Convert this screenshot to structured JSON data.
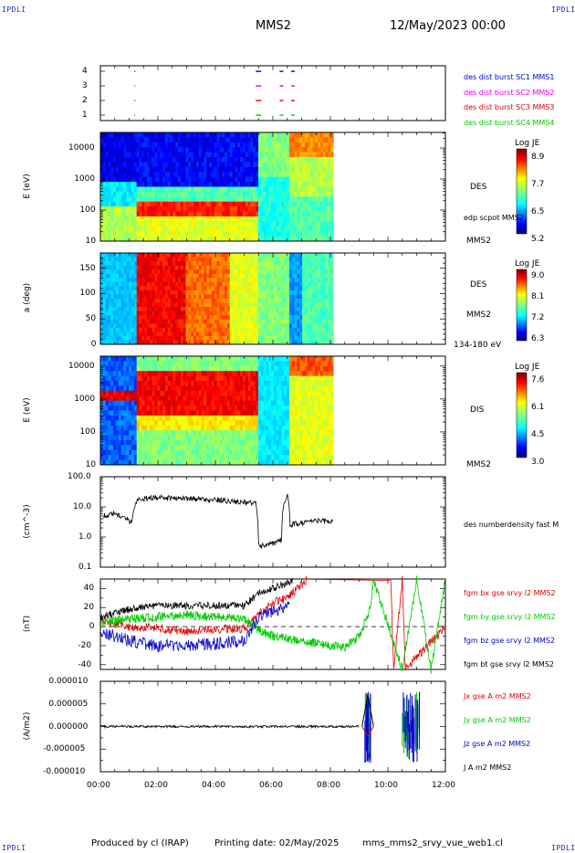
{
  "header": {
    "logo_left": "IPDLI",
    "logo_right": "IPDLI",
    "spacecraft": "MMS2",
    "date": "12/May/2023 00:00"
  },
  "footer": {
    "produced_by": "Produced by cl (IRAP)",
    "printing_date": "Printing date: 02/May/2025",
    "script_name": "mms_mms2_srvy_vue_web1.cl",
    "logo_left": "IPDLI",
    "logo_right": "IPDLI"
  },
  "colors": {
    "blue": "#0000cc",
    "magenta": "#e000e0",
    "red": "#e00000",
    "green": "#00cc00",
    "black": "#000000"
  },
  "chart_data": [
    {
      "type": "scatter",
      "name": "burst-availability",
      "yticks": [
        "1",
        "2",
        "3",
        "4"
      ],
      "legend": [
        {
          "label": "des dist burst SC1 MMS1",
          "color": "#0000cc"
        },
        {
          "label": "des dist burst SC2 MMS2",
          "color": "#e000e0"
        },
        {
          "label": "des dist burst SC3 MMS3",
          "color": "#e00000"
        },
        {
          "label": "des dist burst SC4 MMS4",
          "color": "#00cc00"
        }
      ],
      "x_hours": [
        1.2,
        5.5,
        6.3,
        6.7
      ]
    },
    {
      "type": "heatmap",
      "name": "des-energy-spectrogram",
      "ylabel": "E (eV)",
      "yscale": "log",
      "ytick_labels": [
        "10",
        "100",
        "1000",
        "10000"
      ],
      "colorbar_title": "Log JE",
      "colorbar_ticks": [
        "8.9",
        "7.7",
        "6.5",
        "5.2"
      ],
      "labels": [
        "DES",
        "edp scpot MMS2",
        "MMS2"
      ]
    },
    {
      "type": "heatmap",
      "name": "des-pitch-angle",
      "ylabel": "a (deg)",
      "ytick_labels": [
        "0",
        "50",
        "100",
        "150"
      ],
      "colorbar_title": "Log JE",
      "colorbar_ticks": [
        "9.0",
        "8.1",
        "7.2",
        "6.3"
      ],
      "labels": [
        "DES",
        "MMS2",
        "134-180 eV"
      ]
    },
    {
      "type": "heatmap",
      "name": "dis-energy-spectrogram",
      "ylabel": "E (eV)",
      "yscale": "log",
      "ytick_labels": [
        "10",
        "100",
        "1000",
        "10000"
      ],
      "colorbar_title": "Log JE",
      "colorbar_ticks": [
        "7.6",
        "6.1",
        "4.5",
        "3.0"
      ],
      "labels": [
        "DIS",
        "MMS2"
      ]
    },
    {
      "type": "line",
      "name": "density",
      "ylabel": "(cm^-3)",
      "yscale": "log",
      "ytick_labels": [
        "0.1",
        "1.0",
        "10.0",
        "100.0"
      ],
      "series": [
        {
          "name": "des numberdensity fast M",
          "color": "#000000",
          "x": [
            0.1,
            0.5,
            0.9,
            1.1,
            1.3,
            2.0,
            3.0,
            4.0,
            5.0,
            5.4,
            5.5,
            5.6,
            6.0,
            6.3,
            6.5,
            6.6,
            7.0,
            7.5,
            8.0,
            8.1
          ],
          "y": [
            5,
            6,
            4,
            3,
            18,
            20,
            19,
            17,
            14,
            13,
            0.6,
            0.5,
            0.6,
            0.8,
            25,
            2.5,
            3.0,
            3.5,
            3.2,
            3.3
          ]
        }
      ]
    },
    {
      "type": "line",
      "name": "magnetic-field",
      "ylabel": "(nT)",
      "ylim": [
        -45,
        50
      ],
      "ytick_labels": [
        "-40",
        "-20",
        "0",
        "20",
        "40"
      ],
      "series": [
        {
          "name": "fgm bx gse srvy l2 MMS2",
          "color": "#e00000",
          "x": [
            0.0,
            1.0,
            2.0,
            3.0,
            4.0,
            5.0,
            5.6,
            6.0,
            6.5,
            7.2,
            7.2,
            10.1,
            10.2,
            10.5,
            10.6,
            12.0
          ],
          "y": [
            5,
            0,
            -2,
            -5,
            -3,
            -2,
            15,
            25,
            30,
            50,
            null,
            50,
            -45,
            50,
            -45,
            0
          ]
        },
        {
          "name": "fgm by gse srvy l2 MMS2",
          "color": "#00cc00",
          "x": [
            0.0,
            1.0,
            2.0,
            3.0,
            4.0,
            5.0,
            5.6,
            6.0,
            7.0,
            8.0,
            8.5,
            9.0,
            9.4,
            9.5,
            10.5,
            11.0,
            11.5,
            12.0
          ],
          "y": [
            5,
            8,
            10,
            12,
            10,
            8,
            -5,
            -10,
            -15,
            -20,
            -22,
            -10,
            20,
            50,
            -45,
            50,
            -45,
            50
          ]
        },
        {
          "name": "fgm bz gse srvy l2 MMS2",
          "color": "#0000cc",
          "x": [
            0.0,
            1.0,
            2.0,
            3.0,
            4.0,
            5.0,
            5.5,
            6.0,
            6.5,
            6.6
          ],
          "y": [
            -5,
            -15,
            -20,
            -20,
            -18,
            -15,
            10,
            15,
            22,
            25
          ]
        },
        {
          "name": "fgm bt gse srvy l2 MMS2",
          "color": "#000000",
          "x": [
            0.0,
            1.0,
            2.0,
            3.0,
            4.0,
            5.0,
            5.5,
            6.0,
            6.5,
            6.7
          ],
          "y": [
            10,
            18,
            22,
            22,
            22,
            22,
            35,
            40,
            45,
            50
          ]
        }
      ]
    },
    {
      "type": "line",
      "name": "current-density",
      "ylabel": "(A/m2)",
      "ylim": [
        -1e-05,
        1e-05
      ],
      "ytick_labels": [
        "-0.000010",
        "-0.000005",
        "0.000000",
        "0.000005",
        "0.000010"
      ],
      "xtick_labels": [
        "00:00",
        "02:00",
        "04:00",
        "06:00",
        "08:00",
        "10:00",
        "12:00"
      ],
      "series": [
        {
          "name": "Jx gse A m2 MMS2",
          "color": "#e00000"
        },
        {
          "name": "Jy gse A m2 MMS2",
          "color": "#00cc00"
        },
        {
          "name": "Jz gse A m2 MMS2",
          "color": "#0000cc"
        },
        {
          "name": "J A m2 MMS2",
          "color": "#000000"
        }
      ]
    }
  ]
}
